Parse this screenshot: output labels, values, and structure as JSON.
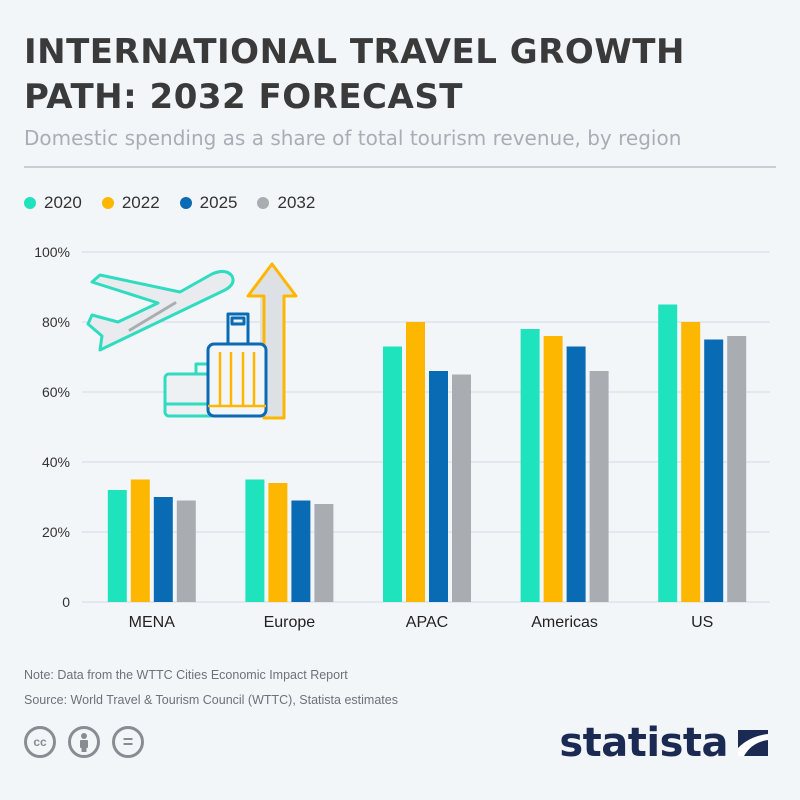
{
  "title": "INTERNATIONAL TRAVEL GROWTH PATH: 2032 FORECAST",
  "subtitle": "Domestic spending as a share of total tourism revenue, by region",
  "note": "Note: Data from the WTTC Cities Economic Impact Report",
  "source": "Source: World Travel & Tourism Council (WTTC), Statista estimates",
  "brand": "statista",
  "license_icons": [
    "cc-icon",
    "by-person-icon",
    "no-derivatives-icon"
  ],
  "license_glyphs": [
    "cc",
    "",
    "="
  ],
  "chart_data": {
    "type": "bar",
    "categories": [
      "MENA",
      "Europe",
      "APAC",
      "Americas",
      "US"
    ],
    "series": [
      {
        "name": "2020",
        "color": "#1ee3bd",
        "values": [
          32,
          35,
          73,
          78,
          85
        ]
      },
      {
        "name": "2022",
        "color": "#fdb700",
        "values": [
          35,
          34,
          80,
          76,
          80
        ]
      },
      {
        "name": "2025",
        "color": "#0a6bb5",
        "values": [
          30,
          29,
          66,
          73,
          75
        ]
      },
      {
        "name": "2032",
        "color": "#a9adb1",
        "values": [
          29,
          28,
          65,
          66,
          76
        ]
      }
    ],
    "ylim": [
      0,
      100
    ],
    "yticks": [
      "0",
      "20%",
      "40%",
      "60%",
      "80%",
      "100%"
    ],
    "ytick_values": [
      0,
      20,
      40,
      60,
      80,
      100
    ],
    "grid": true,
    "legend_position": "top-left"
  }
}
